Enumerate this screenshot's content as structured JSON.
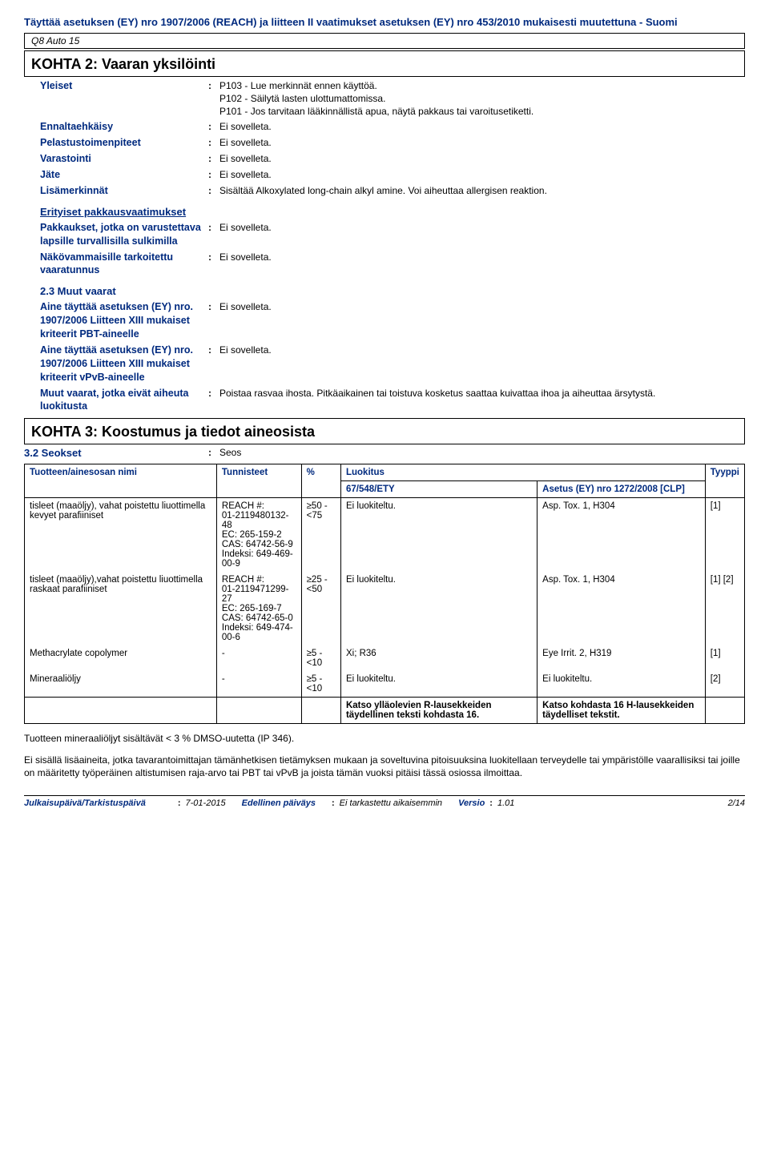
{
  "header": {
    "title": "Täyttää asetuksen (EY) nro 1907/2006 (REACH) ja liitteen II vaatimukset asetuksen (EY) nro 453/2010 mukaisesti muutettuna - Suomi",
    "product": "Q8 Auto 15"
  },
  "section2": {
    "title": "KOHTA 2: Vaaran yksilöinti",
    "rows": [
      {
        "label": "Yleiset",
        "value": "P103 - Lue merkinnät ennen käyttöä.\nP102 - Säilytä lasten ulottumattomissa.\nP101 - Jos tarvitaan lääkinnällistä apua, näytä pakkaus tai varoitusetiketti."
      },
      {
        "label": "Ennaltaehkäisy",
        "value": "Ei sovelleta."
      },
      {
        "label": "Pelastustoimenpiteet",
        "value": "Ei sovelleta."
      },
      {
        "label": "Varastointi",
        "value": "Ei sovelleta."
      },
      {
        "label": "Jäte",
        "value": "Ei sovelleta."
      },
      {
        "label": "Lisämerkinnät",
        "value": "Sisältää Alkoxylated long-chain alkyl amine.  Voi aiheuttaa allergisen reaktion."
      }
    ],
    "packaging_heading": "Erityiset pakkausvaatimukset",
    "packaging_rows": [
      {
        "label": "Pakkaukset, jotka on varustettava lapsille turvallisilla sulkimilla",
        "value": "Ei sovelleta."
      },
      {
        "label": "Näkövammaisille tarkoitettu vaaratunnus",
        "value": "Ei sovelleta."
      }
    ],
    "other_heading": "2.3 Muut vaarat",
    "other_rows": [
      {
        "label": "Aine täyttää asetuksen (EY) nro. 1907/2006 Liitteen XIII mukaiset kriteerit PBT-aineelle",
        "value": "Ei sovelleta."
      },
      {
        "label": "Aine täyttää asetuksen (EY) nro. 1907/2006 Liitteen XIII mukaiset kriteerit vPvB-aineelle",
        "value": "Ei sovelleta."
      },
      {
        "label": "Muut vaarat, jotka eivät aiheuta luokitusta",
        "value": "Poistaa rasvaa ihosta.  Pitkäaikainen tai toistuva kosketus saattaa kuivattaa ihoa ja aiheuttaa ärsytystä."
      }
    ]
  },
  "section3": {
    "title": "KOHTA 3: Koostumus ja tiedot aineosista",
    "mix_label": "3.2 Seokset",
    "mix_value": "Seos",
    "table": {
      "headers": {
        "name": "Tuotteen/ainesosan nimi",
        "ids": "Tunnisteet",
        "pct": "%",
        "ety": "67/548/ETY",
        "clp": "Asetus (EY) nro 1272/2008 [CLP]",
        "type": "Tyyppi",
        "luokitus": "Luokitus"
      },
      "rows": [
        {
          "name": "tisleet (maaöljy), vahat poistettu liuottimella kevyet parafiiniset",
          "ids": "REACH #:\n01-2119480132-48\nEC: 265-159-2\nCAS: 64742-56-9\nIndeksi: 649-469-00-9",
          "pct": "≥50 - <75",
          "ety": "Ei luokiteltu.",
          "clp": "Asp. Tox. 1, H304",
          "type": "[1]"
        },
        {
          "name": "tisleet (maaöljy),vahat poistettu liuottimella raskaat parafiiniset",
          "ids": "REACH #:\n01-2119471299-27\nEC: 265-169-7\nCAS: 64742-65-0\nIndeksi: 649-474-00-6",
          "pct": "≥25 - <50",
          "ety": "Ei luokiteltu.",
          "clp": "Asp. Tox. 1, H304",
          "type": "[1] [2]"
        },
        {
          "name": "Methacrylate copolymer",
          "ids": "-",
          "pct": "≥5 - <10",
          "ety": "Xi; R36",
          "clp": "Eye Irrit. 2, H319",
          "type": "[1]"
        },
        {
          "name": "Mineraaliöljy",
          "ids": "-",
          "pct": "≥5 - <10",
          "ety": "Ei luokiteltu.",
          "clp": "Ei luokiteltu.",
          "type": "[2]"
        }
      ],
      "footer_ety": "Katso ylläolevien R-lausekkeiden täydellinen teksti kohdasta 16.",
      "footer_clp": "Katso kohdasta 16 H-lausekkeiden täydelliset tekstit."
    },
    "note1": "Tuotteen mineraaliöljyt sisältävät < 3 % DMSO-uutetta (IP 346).",
    "note2": "Ei sisällä lisäaineita, jotka tavarantoimittajan tämänhetkisen tietämyksen mukaan ja soveltuvina pitoisuuksina luokitellaan terveydelle tai ympäristölle vaarallisiksi tai joille on määritetty työperäinen altistumisen raja-arvo tai PBT tai vPvB ja joista tämän vuoksi pitäisi tässä osiossa ilmoittaa."
  },
  "footer": {
    "date_label": "Julkaisupäivä/Tarkistuspäivä",
    "date_value": "7-01-2015",
    "prev_label": "Edellinen päiväys",
    "prev_value": "Ei tarkastettu aikaisemmin",
    "version_label": "Versio",
    "version_value": "1.01",
    "page": "2/14"
  }
}
